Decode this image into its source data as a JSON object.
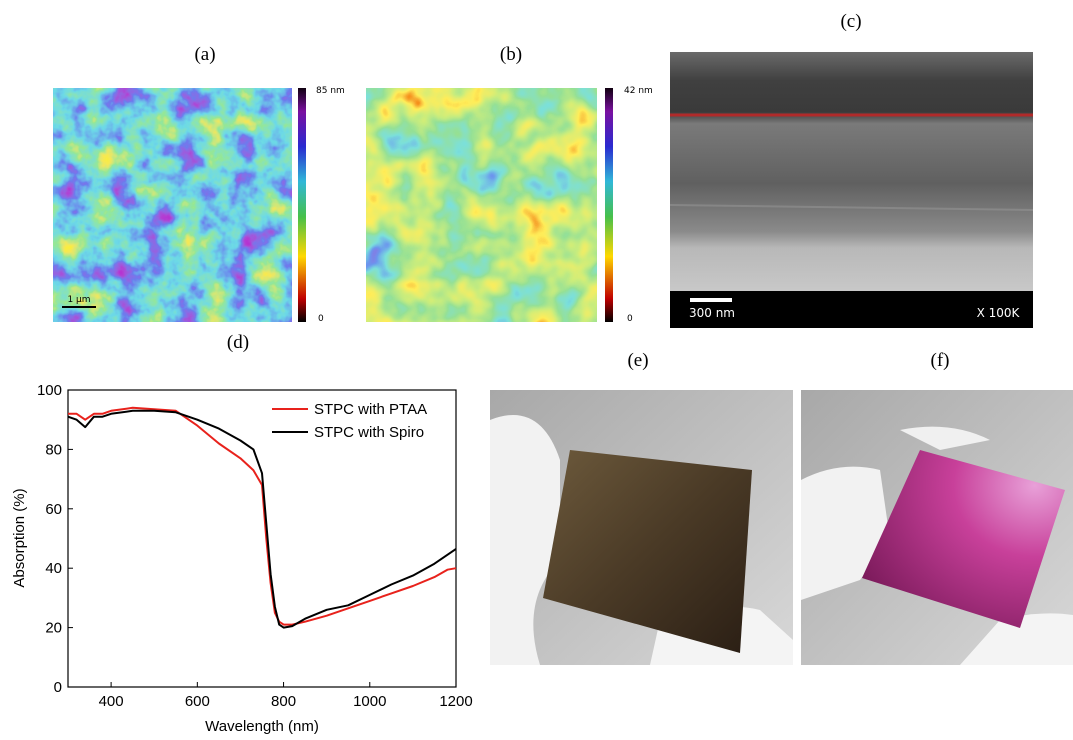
{
  "panel_labels": {
    "a": "(a)",
    "b": "(b)",
    "c": "(c)",
    "d": "(d)",
    "e": "(e)",
    "f": "(f)"
  },
  "afm_a": {
    "scale_max": "85 nm",
    "scale_min": "0",
    "scale_bar": "1 µm"
  },
  "afm_b": {
    "scale_max": "42 nm",
    "scale_min": "0"
  },
  "sem_c": {
    "scale_bar": "300 nm",
    "magnification": "X 100K"
  },
  "chart_data": {
    "type": "line",
    "x_label": "Wavelength (nm)",
    "y_label": "Absorption (%)",
    "x": [
      300,
      320,
      340,
      360,
      380,
      400,
      450,
      500,
      550,
      600,
      650,
      700,
      730,
      750,
      760,
      770,
      780,
      790,
      800,
      820,
      850,
      900,
      950,
      1000,
      1050,
      1100,
      1150,
      1180,
      1200
    ],
    "series": [
      {
        "name": "STPC with PTAA",
        "color": "#e8221c",
        "values": [
          92,
          92,
          90,
          92,
          92,
          93,
          94,
          93.5,
          93,
          88,
          82,
          77,
          73,
          68,
          50,
          35,
          25,
          22,
          21,
          21,
          22,
          24,
          26.5,
          29,
          31.5,
          34,
          37,
          39.5,
          40
        ]
      },
      {
        "name": "STPC with Spiro",
        "color": "#000000",
        "values": [
          91,
          90,
          87.5,
          91,
          91,
          92,
          93,
          93,
          92.5,
          90,
          87,
          83,
          80,
          72,
          55,
          38,
          27,
          21,
          20,
          20.5,
          23,
          26,
          27.5,
          31,
          34.5,
          37.5,
          41.5,
          44.5,
          46.5
        ]
      }
    ],
    "xlim": [
      300,
      1200
    ],
    "ylim": [
      0,
      100
    ],
    "xticks": [
      400,
      600,
      800,
      1000,
      1200
    ],
    "yticks": [
      0,
      20,
      40,
      60,
      80,
      100
    ],
    "legend": "upper right"
  }
}
